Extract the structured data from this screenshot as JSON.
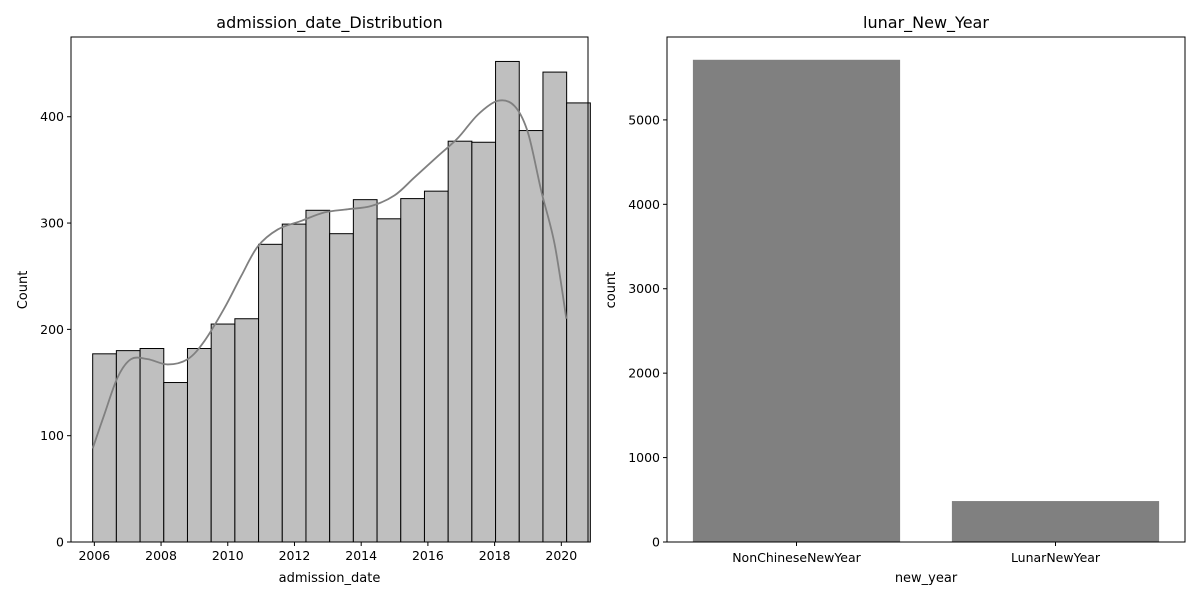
{
  "chart_data": [
    {
      "type": "bar",
      "subtype": "histogram-with-kde",
      "title": "admission_date_Distribution",
      "xlabel": "admission_date",
      "ylabel": "Count",
      "xlim": [
        2005.3,
        2020.8
      ],
      "ylim": [
        0,
        475
      ],
      "xticks": [
        2006,
        2008,
        2010,
        2012,
        2014,
        2016,
        2018,
        2020
      ],
      "yticks": [
        0,
        100,
        200,
        300,
        400
      ],
      "bin_start": 2005.95,
      "bin_width": 0.7105,
      "values": [
        177,
        180,
        182,
        150,
        182,
        205,
        210,
        280,
        299,
        312,
        290,
        322,
        304,
        323,
        330,
        377,
        376,
        452,
        387,
        442,
        413
      ],
      "kde": {
        "x": [
          2005.95,
          2006.3,
          2006.7,
          2007.1,
          2007.6,
          2008.2,
          2008.8,
          2009.3,
          2009.9,
          2010.4,
          2010.9,
          2011.5,
          2012.2,
          2012.9,
          2013.6,
          2014.3,
          2015.0,
          2015.6,
          2016.3,
          2016.9,
          2017.5,
          2018.1,
          2018.6,
          2019.0,
          2019.4,
          2019.8,
          2020.15
        ],
        "y": [
          88,
          120,
          155,
          172,
          172,
          167,
          172,
          189,
          220,
          250,
          278,
          294,
          302,
          310,
          313,
          316,
          326,
          343,
          363,
          380,
          402,
          415,
          410,
          385,
          330,
          280,
          210
        ]
      },
      "bar_color": "#bfbfbf",
      "edge_color": "#000000",
      "kde_color": "#808080"
    },
    {
      "type": "bar",
      "title": "lunar_New_Year",
      "xlabel": "new_year",
      "ylabel": "count",
      "categories": [
        "NonChineseNewYear",
        "LunarNewYear"
      ],
      "values": [
        5712,
        485
      ],
      "ylim": [
        0,
        5700
      ],
      "yticks": [
        0,
        1000,
        2000,
        3000,
        4000,
        5000
      ],
      "bar_color": "#808080"
    }
  ]
}
